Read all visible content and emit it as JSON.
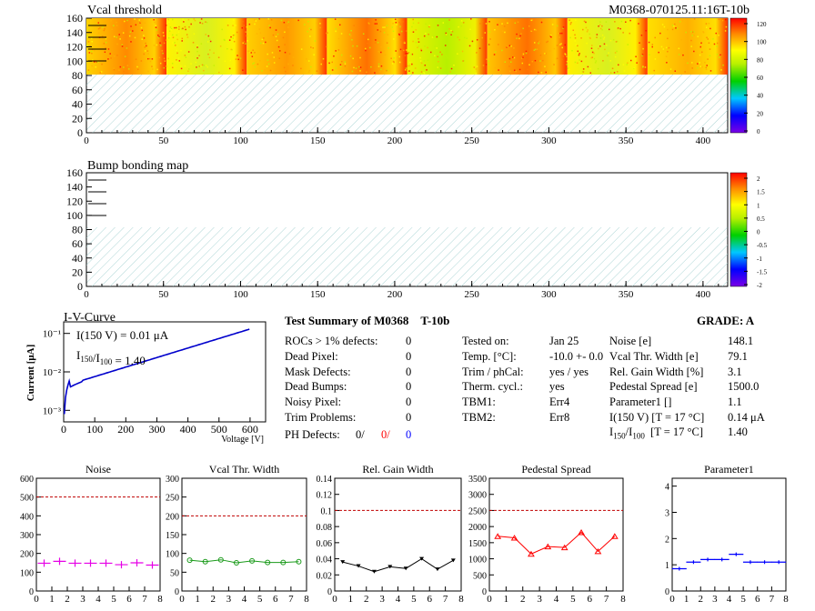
{
  "colors": {
    "red": "#ff0000",
    "blue": "#0000ff",
    "magenta": "#e600e6",
    "green": "#1a9a1a",
    "black": "#000000",
    "dashed": "#c00000"
  },
  "header": {
    "vcal_title": "Vcal threshold",
    "module_id": "M0368-070125.11:16T-10b",
    "bump_title": "Bump bonding map"
  },
  "maps": {
    "x_ticks": [
      "0",
      "50",
      "100",
      "150",
      "200",
      "250",
      "300",
      "350",
      "400"
    ],
    "y_ticks": [
      "0",
      "20",
      "40",
      "60",
      "80",
      "100",
      "120",
      "140",
      "160"
    ],
    "vcal_scale": [
      "0",
      "20",
      "40",
      "60",
      "80",
      "100",
      "120"
    ],
    "bump_scale": [
      "-2",
      "-1.5",
      "-1",
      "-0.5",
      "0",
      "0.5",
      "1",
      "1.5",
      "2"
    ]
  },
  "iv": {
    "title": "I-V-Curve",
    "ylabel": "Current [μA]",
    "xlabel": "Voltage [V]",
    "annotation1": "I(150 V) = 0.01 μA",
    "annotation2_prefix": "I",
    "annotation2_sub1": "150",
    "annotation2_mid": "/I",
    "annotation2_sub2": "100",
    "annotation2_value": "=  1.40",
    "x_ticks": [
      "0",
      "100",
      "200",
      "300",
      "400",
      "500",
      "600"
    ],
    "y_ticks": [
      "10⁻³",
      "10⁻²",
      "10⁻¹"
    ]
  },
  "summary": {
    "title": "Test Summary of M0368",
    "subtitle": "T-10b",
    "grade": "GRADE:  A",
    "left": [
      {
        "label": "ROCs > 1% defects:",
        "value": "0"
      },
      {
        "label": "Dead Pixel:",
        "value": "0"
      },
      {
        "label": "Mask Defects:",
        "value": "0"
      },
      {
        "label": "Dead Bumps:",
        "value": "0"
      },
      {
        "label": "Noisy Pixel:",
        "value": "0"
      },
      {
        "label": "Trim Problems:",
        "value": "0"
      }
    ],
    "ph_label": "PH Defects:",
    "ph_values": [
      "0/",
      "0/",
      "0"
    ],
    "mid": [
      {
        "label": "Tested on:",
        "value": "Jan 25"
      },
      {
        "label": "Temp. [°C]:",
        "value": "-10.0 +- 0.0"
      },
      {
        "label": "Trim / phCal:",
        "value": "yes / yes"
      },
      {
        "label": "Therm. cycl.:",
        "value": "yes"
      },
      {
        "label": "TBM1:",
        "value": "Err4"
      },
      {
        "label": "TBM2:",
        "value": "Err8"
      }
    ],
    "right": [
      {
        "label": "Noise [e]",
        "value": "148.1"
      },
      {
        "label": "Vcal Thr. Width [e]",
        "value": "79.1"
      },
      {
        "label": "Rel. Gain Width [%]",
        "value": "3.1"
      },
      {
        "label": "Pedestal Spread [e]",
        "value": "1500.0"
      },
      {
        "label": "Parameter1 []",
        "value": "1.1"
      },
      {
        "label": "I(150 V) [T = 17 °C]",
        "value": "0.14 μA"
      }
    ],
    "ratio_prefix": "I",
    "ratio_sub1": "150",
    "ratio_mid": "/I",
    "ratio_sub2": "100",
    "ratio_cond": "[T = 17 °C]",
    "ratio_value": "1.40"
  },
  "chart_data": [
    {
      "type": "scatter",
      "title": "Noise",
      "x": [
        0.5,
        1.5,
        2.5,
        3.5,
        4.5,
        5.5,
        6.5,
        7.5
      ],
      "y": [
        148,
        158,
        148,
        148,
        148,
        140,
        150,
        138
      ],
      "xlim": [
        0,
        8
      ],
      "ylim": [
        0,
        600
      ],
      "ref_line": 500,
      "y_ticks": [
        "0",
        "100",
        "200",
        "300",
        "400",
        "500",
        "600"
      ],
      "x_ticks": [
        "0",
        "1",
        "2",
        "3",
        "4",
        "5",
        "6",
        "7",
        "8"
      ],
      "style": "cross",
      "color": "#e600e6"
    },
    {
      "type": "line",
      "title": "Vcal Thr. Width",
      "x": [
        0.5,
        1.5,
        2.5,
        3.5,
        4.5,
        5.5,
        6.5,
        7.5
      ],
      "y": [
        82,
        78,
        83,
        75,
        80,
        76,
        76,
        78
      ],
      "xlim": [
        0,
        8
      ],
      "ylim": [
        0,
        300
      ],
      "ref_line": 200,
      "y_ticks": [
        "0",
        "50",
        "100",
        "150",
        "200",
        "250",
        "300"
      ],
      "x_ticks": [
        "0",
        "1",
        "2",
        "3",
        "4",
        "5",
        "6",
        "7",
        "8"
      ],
      "style": "circle",
      "color": "#1a9a1a"
    },
    {
      "type": "line",
      "title": "Rel. Gain Width",
      "x": [
        0.5,
        1.5,
        2.5,
        3.5,
        4.5,
        5.5,
        6.5,
        7.5
      ],
      "y": [
        0.036,
        0.031,
        0.024,
        0.03,
        0.028,
        0.04,
        0.027,
        0.038
      ],
      "xlim": [
        0,
        8
      ],
      "ylim": [
        0,
        0.14
      ],
      "ref_line": 0.1,
      "y_ticks": [
        "0",
        "0.02",
        "0.04",
        "0.06",
        "0.08",
        "0.1",
        "0.12",
        "0.14"
      ],
      "x_ticks": [
        "0",
        "1",
        "2",
        "3",
        "4",
        "5",
        "6",
        "7",
        "8"
      ],
      "style": "tri-down",
      "color": "#000000"
    },
    {
      "type": "line",
      "title": "Pedestal Spread",
      "x": [
        0.5,
        1.5,
        2.5,
        3.5,
        4.5,
        5.5,
        6.5,
        7.5
      ],
      "y": [
        1700,
        1650,
        1150,
        1380,
        1350,
        1820,
        1230,
        1700
      ],
      "xlim": [
        0,
        8
      ],
      "ylim": [
        0,
        3500
      ],
      "ref_line": 2500,
      "y_ticks": [
        "0",
        "500",
        "1000",
        "1500",
        "2000",
        "2500",
        "3000",
        "3500"
      ],
      "x_ticks": [
        "0",
        "1",
        "2",
        "3",
        "4",
        "5",
        "6",
        "7",
        "8"
      ],
      "style": "tri-up",
      "color": "#ff0000"
    },
    {
      "type": "scatter",
      "title": "Parameter1",
      "x": [
        0.5,
        1.5,
        2.5,
        3.5,
        4.5,
        5.5,
        6.5,
        7.5
      ],
      "y": [
        0.85,
        1.1,
        1.2,
        1.2,
        1.4,
        1.1,
        1.1,
        1.1
      ],
      "xlim": [
        0,
        8
      ],
      "ylim": [
        0,
        4.3
      ],
      "y_ticks": [
        "0",
        "1",
        "2",
        "3",
        "4"
      ],
      "x_ticks": [
        "0",
        "1",
        "2",
        "3",
        "4",
        "5",
        "6",
        "7",
        "8"
      ],
      "style": "hbar",
      "color": "#0000ff"
    }
  ]
}
